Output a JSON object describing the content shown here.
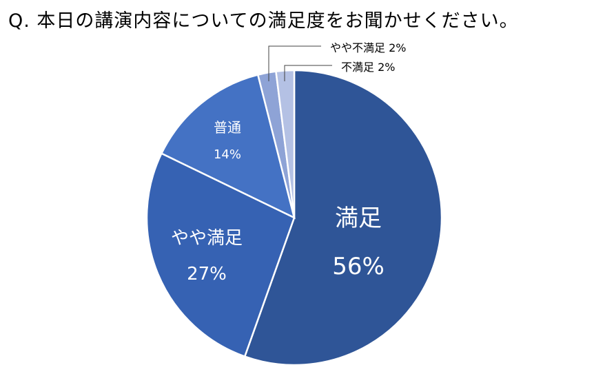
{
  "question": "Q. 本日の講演内容についての満足度をお聞かせください。",
  "chart_data": {
    "type": "pie",
    "title": "Q. 本日の講演内容についての満足度をお聞かせください。",
    "slices": [
      {
        "label": "満足",
        "percent_label": "56%",
        "value": 56,
        "color": "#2F5597"
      },
      {
        "label": "やや満足",
        "percent_label": "27%",
        "value": 27,
        "color": "#3662B3"
      },
      {
        "label": "普通",
        "percent_label": "14%",
        "value": 14,
        "color": "#4472C4"
      },
      {
        "label": "やや不満足",
        "percent_label": "2%",
        "value": 2,
        "color": "#8EA3D6"
      },
      {
        "label": "不満足",
        "percent_label": "2%",
        "value": 2,
        "color": "#B4C1E4"
      }
    ],
    "start": "top",
    "direction": "clockwise",
    "legend": "none",
    "label_color_inside": "#ffffff",
    "label_color_outside": "#000000"
  }
}
